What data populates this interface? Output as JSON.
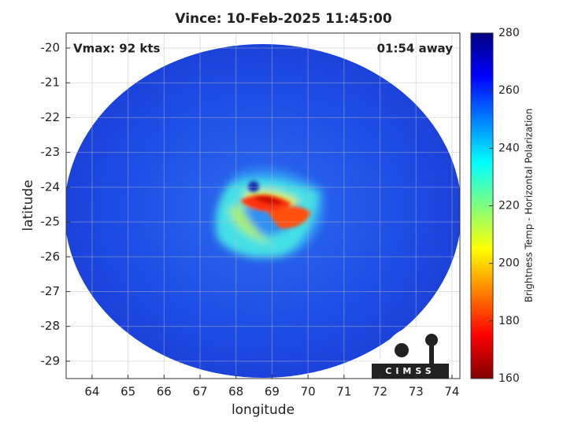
{
  "chart_data": {
    "type": "image",
    "title": "Vince: 10-Feb-2025 11:45:00",
    "annotations": [
      "Vmax: 92 kts",
      "01:54 away"
    ],
    "xlabel": "longitude",
    "ylabel": "latitude",
    "xlim": [
      63.28,
      74.22
    ],
    "xticks": [
      64,
      65,
      66,
      67,
      68,
      69,
      70,
      71,
      72,
      73,
      74
    ],
    "ylim": [
      -29.5,
      -19.57
    ],
    "yticks": [
      -29,
      -28,
      -27,
      -26,
      -25,
      -24,
      -23,
      -22,
      -21,
      -20
    ],
    "grid": true,
    "colorbar_label": "Brightness Temp - Horizontal Polarization",
    "clim": [
      160,
      280
    ],
    "cticks": [
      160,
      180,
      200,
      220,
      240,
      260,
      280
    ],
    "logo": "CIMSS"
  }
}
